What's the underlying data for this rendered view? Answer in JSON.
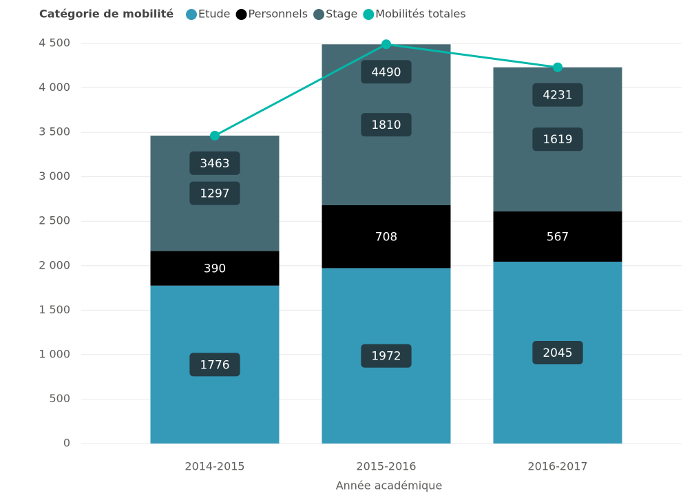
{
  "chart_data": {
    "type": "stacked_bar_line",
    "legend_title": "Catégorie de mobilité",
    "x_label": "Année académique",
    "categories": [
      "2014-2015",
      "2015-2016",
      "2016-2017"
    ],
    "series": [
      {
        "name": "Etude",
        "color": "#3599b8",
        "values": [
          1776,
          1972,
          2045
        ]
      },
      {
        "name": "Personnels",
        "color": "#000000",
        "values": [
          390,
          708,
          567
        ]
      },
      {
        "name": "Stage",
        "color": "#466a74",
        "values": [
          1297,
          1810,
          1619
        ]
      },
      {
        "name": "Mobilités totales",
        "color": "#01b8aa",
        "type": "line",
        "values": [
          3463,
          4490,
          4231
        ]
      }
    ],
    "ylim": [
      0,
      4500
    ],
    "yticks": [
      0,
      500,
      {
        "value": 1000,
        "label": "1 000"
      },
      {
        "value": 1500,
        "label": "1 500"
      },
      {
        "value": 2000,
        "label": "2 000"
      },
      {
        "value": 2500,
        "label": "2 500"
      },
      {
        "value": 3000,
        "label": "3 000"
      },
      {
        "value": 3500,
        "label": "3 500"
      },
      {
        "value": 4000,
        "label": "4 000"
      },
      {
        "value": 4500,
        "label": "4 500"
      }
    ],
    "grid": true
  }
}
